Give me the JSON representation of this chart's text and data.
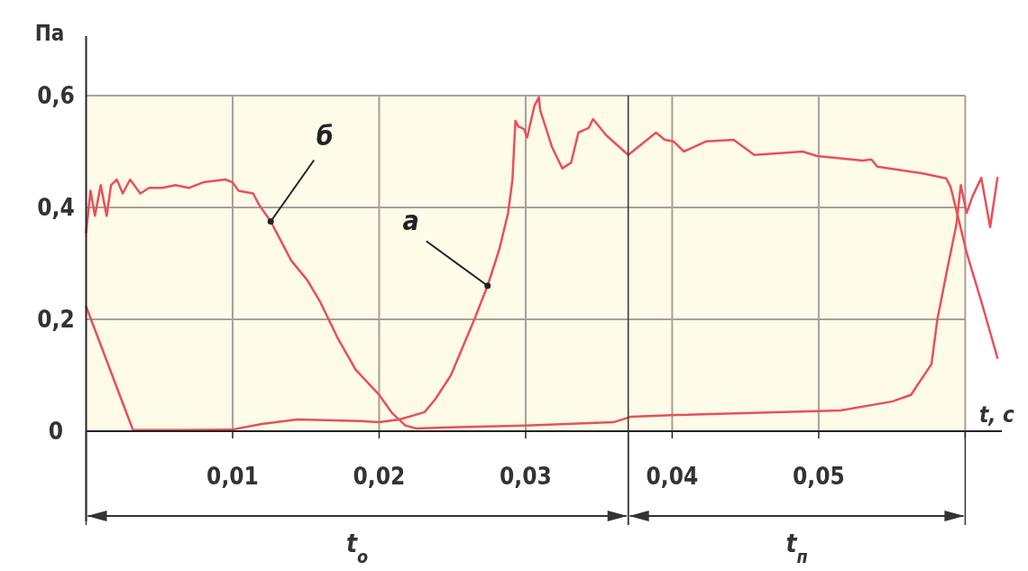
{
  "chart_data": {
    "type": "line",
    "xlabel": "t, c",
    "ylabel": "Па",
    "xlim": [
      0,
      0.0625
    ],
    "ylim": [
      0,
      0.6
    ],
    "xticks": [
      {
        "value": 0.01,
        "label": "0,01"
      },
      {
        "value": 0.02,
        "label": "0,02"
      },
      {
        "value": 0.03,
        "label": "0,03"
      },
      {
        "value": 0.04,
        "label": "0,04"
      },
      {
        "value": 0.05,
        "label": "0,05"
      },
      {
        "value": 0.06,
        "label": null
      }
    ],
    "yticks": [
      0,
      {
        "value": 0.2,
        "label": "0,2"
      },
      {
        "value": 0.4,
        "label": "0,4"
      },
      {
        "value": 0.6,
        "label": "0,6"
      }
    ],
    "grid": true,
    "marker": "none",
    "line_style": "solid",
    "series": [
      {
        "color": "#e8505b",
        "x": [
          0,
          0.0032,
          0.0064,
          0.01,
          0.012,
          0.0144,
          0.0187,
          0.02,
          0.0214,
          0.0231,
          0.0238,
          0.0249,
          0.0265,
          0.0274,
          0.0282,
          0.0288,
          0.0291,
          0.0293,
          0.0295,
          0.0299,
          0.0301,
          0.0306,
          0.0309,
          0.031,
          0.0318,
          0.0325,
          0.0331,
          0.0336,
          0.0343,
          0.0346,
          0.0355,
          0.037,
          0.0389,
          0.0395,
          0.0401,
          0.0408,
          0.0423,
          0.0442,
          0.0456,
          0.0489,
          0.0499,
          0.053,
          0.0536,
          0.054,
          0.0571,
          0.0587,
          0.059,
          0.0595,
          0.0601,
          0.0612,
          0.0622
        ],
        "values": [
          0.223,
          0.002,
          0.002,
          0.003,
          0.013,
          0.021,
          0.018,
          0.016,
          0.021,
          0.034,
          0.056,
          0.1,
          0.2,
          0.26,
          0.325,
          0.39,
          0.45,
          0.555,
          0.545,
          0.54,
          0.525,
          0.582,
          0.597,
          0.573,
          0.508,
          0.47,
          0.48,
          0.534,
          0.542,
          0.558,
          0.529,
          0.494,
          0.534,
          0.521,
          0.518,
          0.5,
          0.518,
          0.521,
          0.494,
          0.5,
          0.492,
          0.484,
          0.486,
          0.473,
          0.461,
          0.452,
          0.437,
          0.384,
          0.319,
          0.223,
          0.131
        ]
      },
      {
        "color": "#e8505b",
        "x": [
          0,
          0.0003,
          0.0006,
          0.001,
          0.0014,
          0.0017,
          0.0021,
          0.0025,
          0.003,
          0.0037,
          0.0043,
          0.0052,
          0.0061,
          0.007,
          0.008,
          0.0095,
          0.01,
          0.0104,
          0.0114,
          0.0118,
          0.0126,
          0.014,
          0.0151,
          0.016,
          0.0172,
          0.0184,
          0.02,
          0.0209,
          0.0218,
          0.0225,
          0.0249,
          0.03,
          0.036,
          0.0372,
          0.0403,
          0.0515,
          0.055,
          0.0563,
          0.0577,
          0.0581,
          0.0587,
          0.0594,
          0.0597,
          0.0601,
          0.0605,
          0.0611,
          0.0617,
          0.0622
        ],
        "values": [
          0.355,
          0.43,
          0.385,
          0.44,
          0.385,
          0.44,
          0.45,
          0.425,
          0.45,
          0.425,
          0.435,
          0.435,
          0.44,
          0.435,
          0.445,
          0.45,
          0.445,
          0.43,
          0.425,
          0.405,
          0.375,
          0.305,
          0.27,
          0.23,
          0.165,
          0.11,
          0.065,
          0.032,
          0.01,
          0.005,
          0.007,
          0.01,
          0.016,
          0.026,
          0.029,
          0.037,
          0.053,
          0.065,
          0.12,
          0.2,
          0.28,
          0.37,
          0.44,
          0.39,
          0.42,
          0.453,
          0.365,
          0.453
        ]
      }
    ],
    "annotations": [
      {
        "text": "а",
        "x": 0.0274,
        "y": 0.26
      },
      {
        "text": "б",
        "x": 0.0126,
        "y": 0.375
      },
      "t$_{о}$",
      "t$_{п}$"
    ],
    "ref_lines": [
      {
        "axis": "x",
        "value": 0.037
      }
    ]
  }
}
